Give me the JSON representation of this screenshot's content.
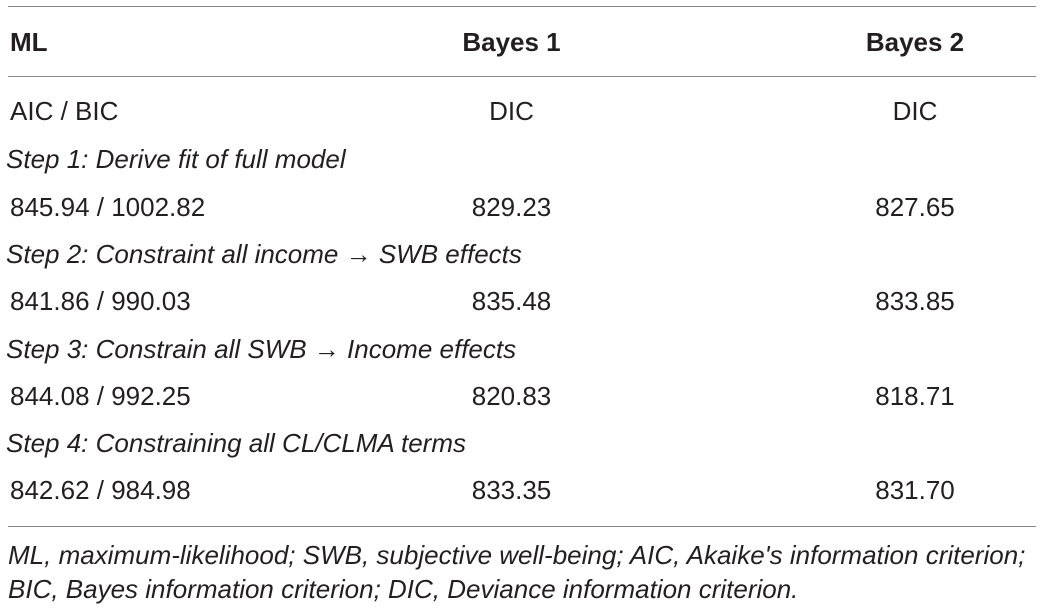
{
  "table": {
    "headers": [
      "ML",
      "Bayes 1",
      "Bayes 2"
    ],
    "subheaders": [
      "AIC / BIC",
      "DIC",
      "DIC"
    ],
    "steps": [
      {
        "label": "Step 1: Derive fit of full model",
        "values": [
          "845.94 / 1002.82",
          "829.23",
          "827.65"
        ]
      },
      {
        "label": "Step 2: Constraint all income → SWB effects",
        "values": [
          "841.86 / 990.03",
          "835.48",
          "833.85"
        ]
      },
      {
        "label": "Step 3: Constrain all SWB → Income effects",
        "values": [
          "844.08 / 992.25",
          "820.83",
          "818.71"
        ]
      },
      {
        "label": "Step 4: Constraining all CL/CLMA terms",
        "values": [
          "842.62 / 984.98",
          "833.35",
          "831.70"
        ]
      }
    ]
  },
  "footnote": "ML, maximum-likelihood; SWB, subjective well-being; AIC, Akaike's information criterion; BIC, Bayes information criterion; DIC, Deviance information criterion."
}
